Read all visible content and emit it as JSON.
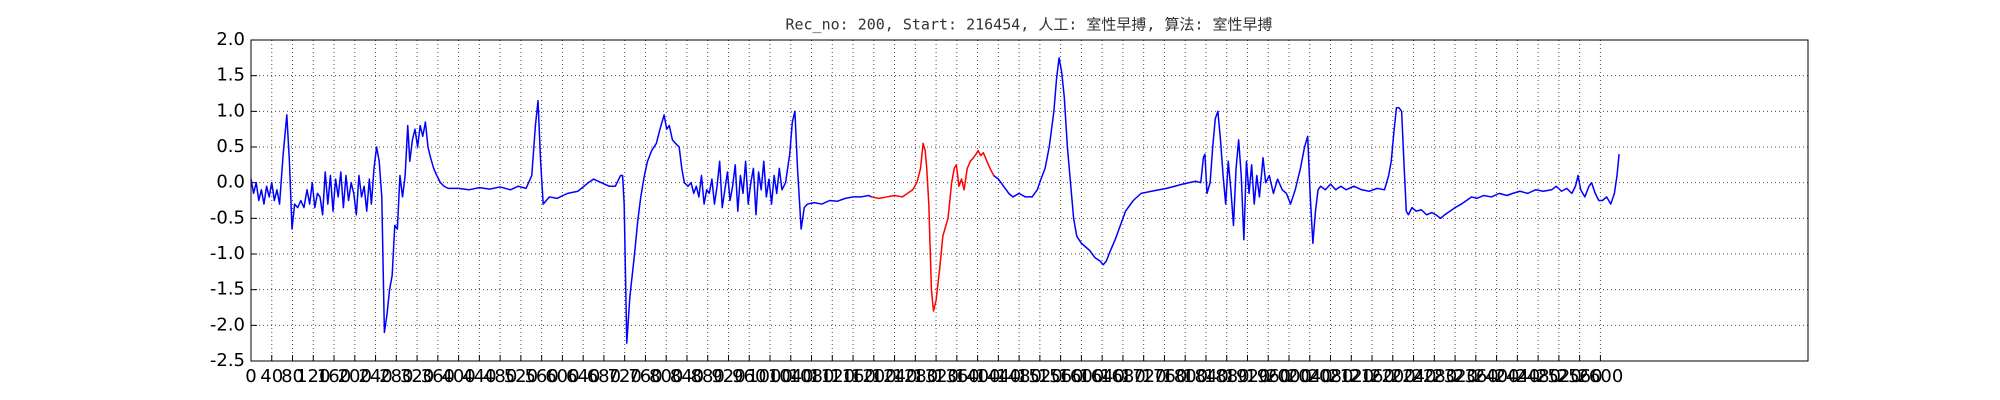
{
  "chart_data": {
    "type": "line",
    "title": "Rec_no: 200, Start: 216454, 人工: 室性早搏, 算法: 室性早搏",
    "xlim": [
      0,
      3000
    ],
    "xticks": [
      0,
      40,
      80,
      120,
      160,
      200,
      240,
      280,
      320,
      360,
      400,
      440,
      480,
      520,
      560,
      600,
      640,
      680,
      720,
      760,
      800,
      840,
      880,
      920,
      960,
      1000,
      1040,
      1080,
      1120,
      1160,
      1200,
      1240,
      1280,
      1320,
      1360,
      1400,
      1440,
      1480,
      1520,
      1560,
      1600,
      1640,
      1680,
      1720,
      1760,
      1800,
      1840,
      1880,
      1920,
      1960,
      2000,
      2040,
      2080,
      2120,
      2160,
      2200,
      2240,
      2280,
      2320,
      2360,
      2400,
      2440,
      2480,
      2520,
      2560,
      2600
    ],
    "ylim": [
      -2.5,
      2.0
    ],
    "yticks": [
      {
        "value": 2.0,
        "label": "2.0"
      },
      1.5,
      {
        "value": 1.0,
        "label": "1.0"
      },
      0.5,
      {
        "value": 0.0,
        "label": "0.0"
      },
      -0.5,
      {
        "value": -1.0,
        "label": "-1.0"
      },
      -1.5,
      {
        "value": -2.0,
        "label": "-2.0"
      },
      -2.5
    ],
    "grid": true,
    "series": [
      {
        "color": "#0000ff",
        "x": [
          0,
          5,
          10,
          15,
          20,
          25,
          30,
          35,
          40,
          45,
          50,
          55,
          62,
          69,
          74,
          79,
          84,
          90,
          96,
          102,
          108,
          113,
          118,
          123,
          128,
          133,
          138,
          143,
          148,
          153,
          158,
          163,
          168,
          173,
          178,
          183,
          188,
          193,
          198,
          203,
          208,
          213,
          218,
          223,
          228,
          232,
          237,
          242,
          247,
          252,
          257,
          262,
          267,
          272,
          277,
          282,
          287,
          292,
          297,
          302,
          306,
          311,
          316,
          321,
          326,
          331,
          336,
          341,
          346,
          352,
          358,
          365,
          372,
          380,
          400,
          420,
          440,
          460,
          480,
          500,
          515,
          530,
          541,
          548,
          553,
          558,
          563,
          575,
          590,
          610,
          630,
          650,
          660,
          675,
          690,
          702,
          712,
          716,
          719,
          724,
          730,
          739,
          745,
          751,
          758,
          764,
          772,
          781,
          788,
          796,
          801,
          806,
          812,
          818,
          825,
          830,
          835,
          842,
          848,
          853,
          858,
          863,
          868,
          873,
          878,
          883,
          888,
          893,
          898,
          903,
          908,
          913,
          918,
          923,
          928,
          933,
          938,
          943,
          948,
          953,
          958,
          963,
          968,
          973,
          978,
          983,
          988,
          993,
          998,
          1003,
          1008,
          1013,
          1018,
          1023,
          1030,
          1038,
          1043,
          1048,
          1053,
          1060,
          1066,
          1072,
          1085,
          1100,
          1115,
          1130,
          1145,
          1160,
          1175,
          1190,
          1196
        ],
        "values": [
          0.05,
          -0.15,
          0.0,
          -0.25,
          -0.1,
          -0.3,
          -0.05,
          -0.2,
          0.0,
          -0.25,
          -0.1,
          -0.3,
          0.4,
          0.95,
          0.3,
          -0.65,
          -0.3,
          -0.35,
          -0.25,
          -0.35,
          -0.1,
          -0.3,
          0.0,
          -0.35,
          -0.15,
          -0.2,
          -0.45,
          0.15,
          -0.3,
          0.1,
          -0.4,
          0.05,
          -0.2,
          0.15,
          -0.35,
          0.1,
          -0.25,
          0.0,
          -0.15,
          -0.45,
          0.1,
          -0.2,
          -0.05,
          -0.4,
          0.05,
          -0.3,
          0.2,
          0.5,
          0.3,
          -0.2,
          -2.1,
          -1.85,
          -1.5,
          -1.3,
          -0.6,
          -0.65,
          0.1,
          -0.2,
          0.1,
          0.8,
          0.3,
          0.6,
          0.75,
          0.5,
          0.8,
          0.65,
          0.85,
          0.5,
          0.35,
          0.2,
          0.1,
          0.0,
          -0.05,
          -0.08,
          -0.08,
          -0.1,
          -0.07,
          -0.09,
          -0.06,
          -0.1,
          -0.05,
          -0.08,
          0.1,
          0.8,
          1.15,
          0.3,
          -0.3,
          -0.2,
          -0.22,
          -0.15,
          -0.12,
          0.0,
          0.05,
          0.0,
          -0.05,
          -0.05,
          0.1,
          0.1,
          -0.3,
          -2.25,
          -1.6,
          -1.0,
          -0.55,
          -0.2,
          0.1,
          0.3,
          0.45,
          0.55,
          0.75,
          0.95,
          0.75,
          0.8,
          0.6,
          0.55,
          0.5,
          0.2,
          0.0,
          -0.05,
          0.0,
          -0.15,
          -0.05,
          -0.2,
          0.1,
          -0.3,
          -0.1,
          -0.15,
          0.05,
          -0.3,
          -0.05,
          0.3,
          -0.35,
          -0.1,
          0.15,
          -0.25,
          -0.05,
          0.25,
          -0.4,
          0.1,
          -0.15,
          0.3,
          -0.3,
          0.0,
          0.2,
          -0.45,
          0.15,
          -0.1,
          0.3,
          -0.2,
          0.05,
          -0.3,
          0.1,
          -0.15,
          0.2,
          -0.1,
          0.0,
          0.4,
          0.85,
          1.0,
          0.2,
          -0.65,
          -0.35,
          -0.3,
          -0.28,
          -0.3,
          -0.25,
          -0.26,
          -0.22,
          -0.2,
          -0.2,
          -0.18,
          -0.2
        ]
      },
      {
        "color": "#ff0000",
        "x": [
          1196,
          1210,
          1225,
          1240,
          1255,
          1265,
          1275,
          1283,
          1290,
          1295,
          1299,
          1302,
          1306,
          1311,
          1315,
          1320,
          1327,
          1333,
          1339,
          1343,
          1350,
          1355,
          1359,
          1364,
          1369,
          1374,
          1380,
          1386,
          1392,
          1397,
          1401,
          1406,
          1411,
          1418,
          1424,
          1431
        ],
        "values": [
          -0.2,
          -0.22,
          -0.2,
          -0.18,
          -0.2,
          -0.15,
          -0.1,
          0.0,
          0.2,
          0.55,
          0.45,
          0.2,
          -0.3,
          -1.5,
          -1.8,
          -1.65,
          -1.2,
          -0.75,
          -0.6,
          -0.5,
          0.0,
          0.2,
          0.25,
          -0.05,
          0.05,
          -0.1,
          0.2,
          0.3,
          0.35,
          0.4,
          0.45,
          0.38,
          0.42,
          0.3,
          0.2,
          0.1
        ]
      },
      {
        "color": "#0000ff",
        "x": [
          1431,
          1440,
          1450,
          1460,
          1468,
          1480,
          1492,
          1505,
          1515,
          1522,
          1530,
          1538,
          1547,
          1552,
          1557,
          1562,
          1567,
          1573,
          1579,
          1585,
          1591,
          1600,
          1608,
          1616,
          1626,
          1636,
          1642,
          1648,
          1656,
          1665,
          1675,
          1685,
          1700,
          1715,
          1735,
          1750,
          1764,
          1780,
          1795,
          1808,
          1820,
          1830,
          1835,
          1838,
          1842,
          1848,
          1853,
          1858,
          1863,
          1868,
          1873,
          1878,
          1883,
          1888,
          1893,
          1898,
          1903,
          1908,
          1913,
          1918,
          1923,
          1928,
          1933,
          1938,
          1943,
          1950,
          1955,
          1962,
          1970,
          1978,
          1987,
          1995,
          2003,
          2012,
          2022,
          2030,
          2036,
          2041,
          2046,
          2051,
          2056,
          2061,
          2070,
          2080,
          2090,
          2100,
          2110,
          2125,
          2140,
          2155,
          2170,
          2184,
          2192,
          2197,
          2202,
          2207,
          2212,
          2217,
          2222,
          2226,
          2230,
          2237,
          2245,
          2255,
          2265,
          2275,
          2283,
          2292,
          2300,
          2310,
          2320,
          2332,
          2342,
          2352,
          2362,
          2375,
          2390,
          2405,
          2420,
          2431,
          2445,
          2460,
          2475,
          2490,
          2506,
          2515,
          2525,
          2535,
          2545,
          2552,
          2557,
          2562,
          2570,
          2578,
          2583,
          2590,
          2597,
          2604,
          2612,
          2620,
          2627,
          2632,
          2636
        ],
        "values": [
          0.1,
          0.05,
          -0.05,
          -0.15,
          -0.2,
          -0.15,
          -0.2,
          -0.2,
          -0.1,
          0.05,
          0.2,
          0.5,
          1.0,
          1.45,
          1.75,
          1.55,
          1.2,
          0.5,
          0.0,
          -0.5,
          -0.75,
          -0.85,
          -0.9,
          -0.95,
          -1.05,
          -1.1,
          -1.15,
          -1.1,
          -0.95,
          -0.8,
          -0.6,
          -0.4,
          -0.25,
          -0.15,
          -0.12,
          -0.1,
          -0.08,
          -0.05,
          -0.02,
          0.0,
          0.02,
          0.0,
          0.35,
          0.4,
          -0.15,
          0.0,
          0.5,
          0.9,
          1.0,
          0.6,
          0.1,
          -0.3,
          0.3,
          -0.1,
          -0.6,
          0.2,
          0.6,
          0.1,
          -0.8,
          0.3,
          -0.15,
          0.25,
          -0.3,
          0.1,
          -0.2,
          0.35,
          0.0,
          0.1,
          -0.15,
          0.05,
          -0.1,
          -0.15,
          -0.3,
          -0.1,
          0.2,
          0.5,
          0.65,
          -0.2,
          -0.85,
          -0.4,
          -0.1,
          -0.05,
          -0.1,
          -0.02,
          -0.1,
          -0.05,
          -0.1,
          -0.05,
          -0.1,
          -0.12,
          -0.08,
          -0.1,
          0.1,
          0.3,
          0.7,
          1.05,
          1.05,
          1.0,
          0.2,
          -0.4,
          -0.45,
          -0.35,
          -0.4,
          -0.38,
          -0.45,
          -0.42,
          -0.45,
          -0.5,
          -0.45,
          -0.4,
          -0.35,
          -0.3,
          -0.25,
          -0.2,
          -0.22,
          -0.18,
          -0.2,
          -0.15,
          -0.18,
          -0.15,
          -0.12,
          -0.15,
          -0.1,
          -0.12,
          -0.1,
          -0.05,
          -0.12,
          -0.08,
          -0.15,
          -0.05,
          0.1,
          -0.1,
          -0.2,
          -0.05,
          0.0,
          -0.15,
          -0.25,
          -0.25,
          -0.2,
          -0.3,
          -0.15,
          0.1,
          0.4
        ]
      }
    ]
  }
}
